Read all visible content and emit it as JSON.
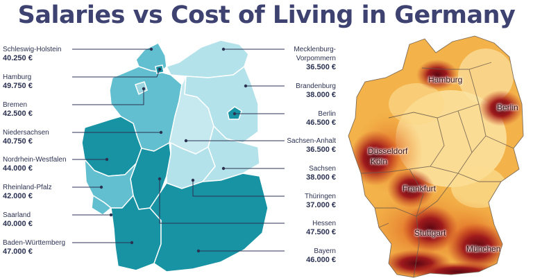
{
  "title": "Salaries vs Cost of Living in Germany",
  "colors": {
    "dark_teal": "#1893a3",
    "mid_teal": "#62bfcf",
    "light_teal": "#b4e2ea",
    "title": "#3d4270"
  },
  "states": [
    {
      "name": "Schleswig-Holstein",
      "salary": "40.250 €",
      "shade": "mid"
    },
    {
      "name": "Hamburg",
      "salary": "49.750 €",
      "shade": "dark"
    },
    {
      "name": "Bremen",
      "salary": "42.500 €",
      "shade": "mid"
    },
    {
      "name": "Niedersachsen",
      "salary": "40.750 €",
      "shade": "mid"
    },
    {
      "name": "Nordrhein-Westfalen",
      "salary": "44.000 €",
      "shade": "dark"
    },
    {
      "name": "Rheinland-Pfalz",
      "salary": "42.000 €",
      "shade": "mid"
    },
    {
      "name": "Saarland",
      "salary": "40.000 €",
      "shade": "mid"
    },
    {
      "name": "Baden-Württemberg",
      "salary": "47.000 €",
      "shade": "dark"
    },
    {
      "name": "Mecklenburg-Vorpommern",
      "name_line1": "Mecklenburg-",
      "name_line2": "Vorpommern",
      "salary": "36.500 €",
      "shade": "light"
    },
    {
      "name": "Brandenburg",
      "salary": "38.000 €",
      "shade": "light"
    },
    {
      "name": "Berlin",
      "salary": "46.500 €",
      "shade": "dark"
    },
    {
      "name": "Sachsen-Anhalt",
      "salary": "36.500 €",
      "shade": "light"
    },
    {
      "name": "Sachsen",
      "salary": "38.000 €",
      "shade": "light"
    },
    {
      "name": "Thüringen",
      "salary": "37.000 €",
      "shade": "light"
    },
    {
      "name": "Hessen",
      "salary": "47.500 €",
      "shade": "dark"
    },
    {
      "name": "Bayern",
      "salary": "46.000 €",
      "shade": "dark"
    }
  ],
  "cost_map_cities": [
    "Hamburg",
    "Berlin",
    "Düsseldorf",
    "Köln",
    "Frankfurt",
    "Stuttgart",
    "München"
  ]
}
